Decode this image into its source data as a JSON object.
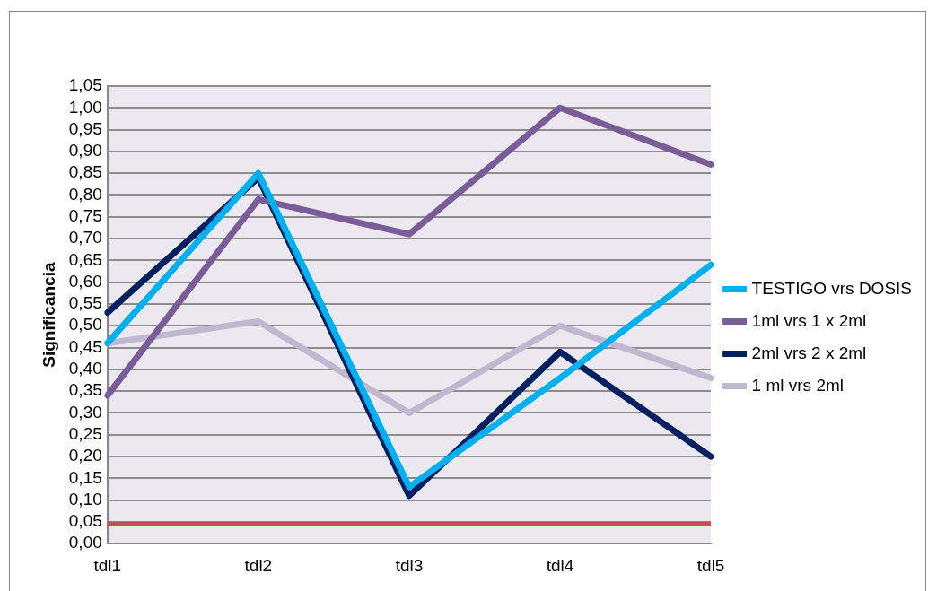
{
  "chart_data": {
    "type": "line",
    "ylabel": "Significancia",
    "categories": [
      "tdl1",
      "tdl2",
      "tdl3",
      "tdl4",
      "tdl5"
    ],
    "series": [
      {
        "name": "TESTIGO vrs DOSIS",
        "color": "#00b0f0",
        "values": [
          0.46,
          0.85,
          0.13,
          0.38,
          0.64
        ]
      },
      {
        "name": "1ml vrs 1 x 2ml",
        "color": "#7a5c98",
        "values": [
          0.34,
          0.79,
          0.71,
          1.0,
          0.87
        ]
      },
      {
        "name": "2ml vrs 2 x 2ml",
        "color": "#002060",
        "values": [
          0.53,
          0.84,
          0.11,
          0.44,
          0.2
        ]
      },
      {
        "name": "1 ml vrs 2ml",
        "color": "#bfb8d0",
        "values": [
          0.46,
          0.51,
          0.3,
          0.5,
          0.38
        ]
      }
    ],
    "ylim": [
      0,
      1.05
    ],
    "yticks": [
      {
        "value": 0,
        "label": "0,00"
      },
      {
        "value": 0.05,
        "label": "0,05"
      },
      {
        "value": 0.1,
        "label": "0,10"
      },
      {
        "value": 0.15,
        "label": "0,15"
      },
      {
        "value": 0.2,
        "label": "0,20"
      },
      {
        "value": 0.25,
        "label": "0,25"
      },
      {
        "value": 0.3,
        "label": "0,30"
      },
      {
        "value": 0.35,
        "label": "0,35"
      },
      {
        "value": 0.4,
        "label": "0,40"
      },
      {
        "value": 0.45,
        "label": "0,45"
      },
      {
        "value": 0.5,
        "label": "0,50"
      },
      {
        "value": 0.55,
        "label": "0,55"
      },
      {
        "value": 0.6,
        "label": "0,60"
      },
      {
        "value": 0.65,
        "label": "0,65"
      },
      {
        "value": 0.7,
        "label": "0,70"
      },
      {
        "value": 0.75,
        "label": "0,75"
      },
      {
        "value": 0.8,
        "label": "0,80"
      },
      {
        "value": 0.85,
        "label": "0,85"
      },
      {
        "value": 0.9,
        "label": "0,90"
      },
      {
        "value": 0.95,
        "label": "0,95"
      },
      {
        "value": 1.0,
        "label": "1,00"
      },
      {
        "value": 1.05,
        "label": "1,05"
      }
    ],
    "ref_lines": [
      {
        "axis": "y",
        "value": 0.045,
        "color": "#c0504d"
      }
    ],
    "grid": "y",
    "legend": "right",
    "marker": "none",
    "line_style": "solid"
  }
}
